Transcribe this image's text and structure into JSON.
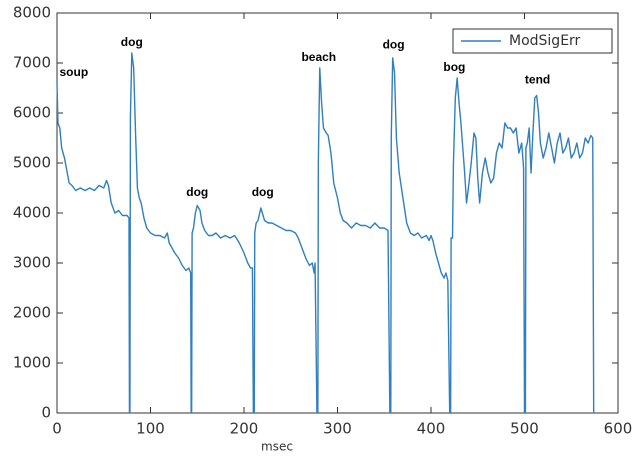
{
  "chart_data": {
    "type": "line",
    "xlabel": "msec",
    "x": [
      0,
      1,
      3,
      5,
      8,
      10,
      13,
      16,
      20,
      25,
      30,
      35,
      40,
      45,
      50,
      53,
      55,
      58,
      62,
      66,
      70,
      75,
      77,
      77.5,
      78,
      78.5,
      80,
      82,
      84,
      86,
      88,
      90,
      93,
      96,
      100,
      105,
      110,
      115,
      118,
      120,
      123,
      126,
      130,
      134,
      138,
      141,
      143,
      143.5,
      144,
      144.5,
      146,
      148,
      150,
      153,
      155,
      158,
      162,
      166,
      170,
      175,
      180,
      185,
      190,
      195,
      200,
      204,
      207,
      209,
      210,
      211,
      211.5,
      213,
      215,
      218,
      222,
      226,
      230,
      235,
      240,
      245,
      250,
      255,
      258,
      262,
      266,
      270,
      273,
      275,
      276,
      278,
      279,
      279.5,
      281,
      283,
      285,
      288,
      290,
      293,
      296,
      300,
      303,
      306,
      310,
      315,
      320,
      325,
      330,
      335,
      340,
      345,
      350,
      354,
      356,
      357,
      357.5,
      359,
      361,
      363,
      366,
      370,
      374,
      378,
      382,
      386,
      390,
      395,
      398,
      400,
      402,
      405,
      408,
      411,
      414,
      416,
      418,
      420,
      421,
      421.5,
      423,
      424,
      426,
      428,
      430,
      432,
      434,
      436,
      438,
      440,
      443,
      446,
      448,
      450,
      452,
      455,
      458,
      461,
      464,
      467,
      470,
      473,
      476,
      479,
      482,
      485,
      488,
      491,
      494,
      497,
      499,
      500,
      501,
      501.5,
      503,
      505,
      507,
      509,
      511,
      513,
      515,
      517,
      520,
      523,
      526,
      529,
      532,
      535,
      538,
      541,
      544,
      547,
      550,
      553,
      556,
      559,
      562,
      565,
      568,
      571,
      573,
      574
    ],
    "series": [
      {
        "name": "ModSigErr",
        "color": "#2f7fc1",
        "values": [
          6600,
          5800,
          5700,
          5300,
          5100,
          4900,
          4600,
          4550,
          4450,
          4500,
          4450,
          4500,
          4450,
          4550,
          4500,
          4650,
          4550,
          4200,
          4000,
          4050,
          3950,
          3950,
          3900,
          0,
          0,
          5900,
          7200,
          6900,
          5600,
          4500,
          4300,
          4200,
          3900,
          3700,
          3600,
          3550,
          3550,
          3500,
          3600,
          3400,
          3300,
          3200,
          3100,
          2950,
          2850,
          2900,
          2800,
          0,
          0,
          3600,
          3700,
          4000,
          4150,
          4050,
          3800,
          3650,
          3550,
          3550,
          3600,
          3500,
          3550,
          3500,
          3550,
          3400,
          3200,
          3000,
          2900,
          2900,
          0,
          0,
          3600,
          3800,
          3850,
          4100,
          3850,
          3800,
          3800,
          3750,
          3700,
          3650,
          3650,
          3600,
          3500,
          3300,
          3100,
          2950,
          3000,
          2800,
          3000,
          0,
          0,
          5000,
          6900,
          6200,
          5700,
          5600,
          5550,
          5200,
          4600,
          4300,
          4000,
          3850,
          3800,
          3700,
          3800,
          3750,
          3750,
          3700,
          3800,
          3700,
          3700,
          3650,
          0,
          0,
          5500,
          7100,
          6800,
          5500,
          4800,
          4300,
          3800,
          3600,
          3550,
          3600,
          3500,
          3550,
          3450,
          3550,
          3450,
          3200,
          3000,
          2800,
          2700,
          2800,
          2650,
          0,
          0,
          3500,
          3500,
          5000,
          6300,
          6700,
          6200,
          5800,
          5300,
          4800,
          4200,
          4500,
          5000,
          5600,
          5500,
          4700,
          4200,
          4800,
          5100,
          4800,
          4600,
          4700,
          5200,
          5400,
          5300,
          5800,
          5700,
          5700,
          5600,
          5700,
          5200,
          5400,
          4900,
          0,
          0,
          5300,
          5400,
          5700,
          4800,
          5600,
          6300,
          6350,
          6000,
          5400,
          5100,
          5300,
          5600,
          5300,
          5000,
          5400,
          5600,
          5200,
          5300,
          5500,
          5100,
          5200,
          5400,
          5100,
          5200,
          5500,
          5400,
          5550,
          5500,
          0
        ]
      }
    ],
    "annotations": [
      {
        "text": "soup",
        "x": 18,
        "y": 6800
      },
      {
        "text": "dog",
        "x": 80,
        "y": 7400
      },
      {
        "text": "dog",
        "x": 150,
        "y": 4400
      },
      {
        "text": "dog",
        "x": 220,
        "y": 4400
      },
      {
        "text": "beach",
        "x": 280,
        "y": 7100
      },
      {
        "text": "dog",
        "x": 360,
        "y": 7350
      },
      {
        "text": "bog",
        "x": 425,
        "y": 6900
      },
      {
        "text": "tend",
        "x": 514,
        "y": 6650
      }
    ],
    "xlim": [
      0,
      600
    ],
    "xticks": [
      0,
      100,
      200,
      300,
      400,
      500,
      600
    ],
    "ylim": [
      0,
      8000
    ],
    "yticks": [
      0,
      1000,
      2000,
      3000,
      4000,
      5000,
      6000,
      7000,
      8000
    ],
    "legend": "upper right",
    "grid": false
  }
}
